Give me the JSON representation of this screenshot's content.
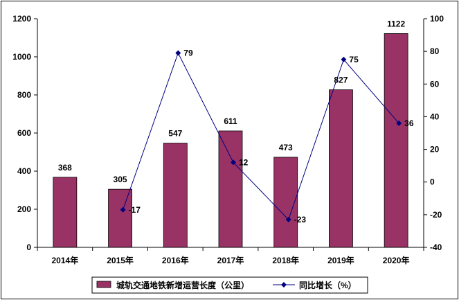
{
  "chart_data": {
    "type": "bar+line",
    "categories": [
      "2014年",
      "2015年",
      "2016年",
      "2017年",
      "2018年",
      "2019年",
      "2020年"
    ],
    "series": [
      {
        "name": "城轨交通地铁新增运营长度（公里）",
        "type": "bar",
        "axis": "left",
        "values": [
          368,
          305,
          547,
          611,
          473,
          827,
          1122
        ],
        "color": "#993366"
      },
      {
        "name": "同比增长（%）",
        "type": "line",
        "axis": "right",
        "values": [
          null,
          -17,
          79,
          12,
          -23,
          75,
          36
        ],
        "color": "#000080",
        "marker": "diamond"
      }
    ],
    "y_left": {
      "min": 0,
      "max": 1200,
      "ticks": [
        0,
        200,
        400,
        600,
        800,
        1000,
        1200
      ]
    },
    "y_right": {
      "min": -40,
      "max": 100,
      "ticks": [
        -40,
        -20,
        0,
        20,
        40,
        60,
        80,
        100
      ]
    },
    "grid": false,
    "legend_position": "bottom"
  }
}
